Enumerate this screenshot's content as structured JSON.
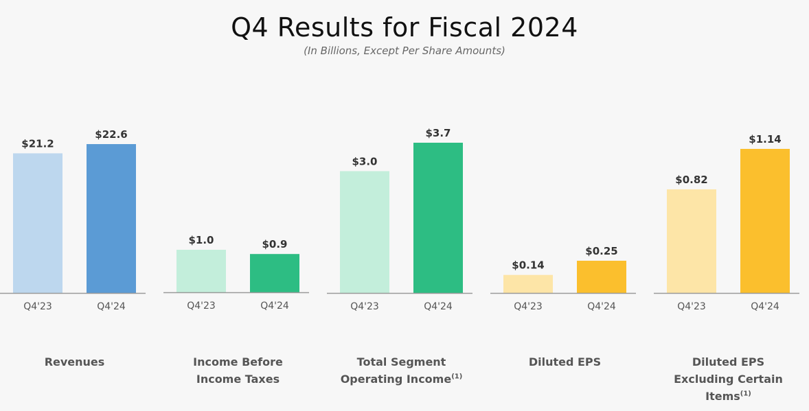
{
  "title": "Q4 Results for Fiscal 2024",
  "subtitle": "(In Billions, Except Per Share Amounts)",
  "chart_data": [
    {
      "type": "bar",
      "name_lines": [
        "Revenues"
      ],
      "footnote": "",
      "categories": [
        "Q4'23",
        "Q4'24"
      ],
      "values": [
        21.2,
        22.6
      ],
      "labels": [
        "$21.2",
        "$22.6"
      ],
      "colors": [
        "#bdd7ee",
        "#5b9bd5"
      ]
    },
    {
      "type": "bar",
      "name_lines": [
        "Income Before",
        "Income Taxes"
      ],
      "footnote": "",
      "categories": [
        "Q4'23",
        "Q4'24"
      ],
      "values": [
        1.0,
        0.9
      ],
      "labels": [
        "$1.0",
        "$0.9"
      ],
      "colors": [
        "#c3eedb",
        "#2dbd83"
      ]
    },
    {
      "type": "bar",
      "name_lines": [
        "Total Segment",
        "Operating Income"
      ],
      "footnote": "(1)",
      "categories": [
        "Q4'23",
        "Q4'24"
      ],
      "values": [
        3.0,
        3.7
      ],
      "labels": [
        "$3.0",
        "$3.7"
      ],
      "colors": [
        "#c3eedb",
        "#2dbd83"
      ]
    },
    {
      "type": "bar",
      "name_lines": [
        "Diluted EPS"
      ],
      "footnote": "",
      "categories": [
        "Q4'23",
        "Q4'24"
      ],
      "values": [
        0.14,
        0.25
      ],
      "labels": [
        "$0.14",
        "$0.25"
      ],
      "colors": [
        "#fde5a7",
        "#fbbf2d"
      ]
    },
    {
      "type": "bar",
      "name_lines": [
        "Diluted EPS",
        "Excluding Certain Items"
      ],
      "footnote": "(1)",
      "categories": [
        "Q4'23",
        "Q4'24"
      ],
      "values": [
        0.82,
        1.14
      ],
      "labels": [
        "$0.82",
        "$1.14"
      ],
      "colors": [
        "#fde5a7",
        "#fbbf2d"
      ]
    }
  ]
}
